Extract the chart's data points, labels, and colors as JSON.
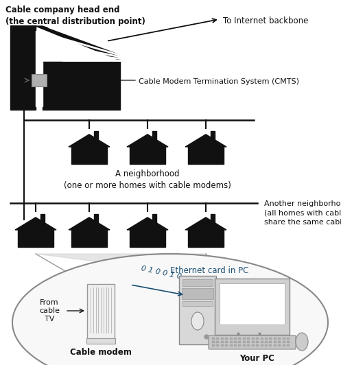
{
  "bg_color": "#ffffff",
  "text_color_black": "#111111",
  "text_color_blue": "#1a4f72",
  "line_color": "#111111",
  "house_color": "#111111",
  "building_color": "#111111",
  "title_text": "Cable company head end\n(the central distribution point)",
  "backbone_text": "To Internet backbone",
  "cmts_text": "Cable Modem Termination System (CMTS)",
  "neighborhood1_text": "A neighborhood\n(one or more homes with cable modems)",
  "neighborhood2_text": "Another neighborhood\n(all homes with cable modems\nshare the same cable)",
  "ethernet_text": "Ethernet card in PC",
  "from_cable_text": "From\ncable\nTV",
  "cable_modem_label": "Cable modem",
  "your_pc_label": "Your PC",
  "data_bits_text": "0 1 0 0 1 0",
  "figsize": [
    4.97,
    5.32
  ],
  "dpi": 100
}
